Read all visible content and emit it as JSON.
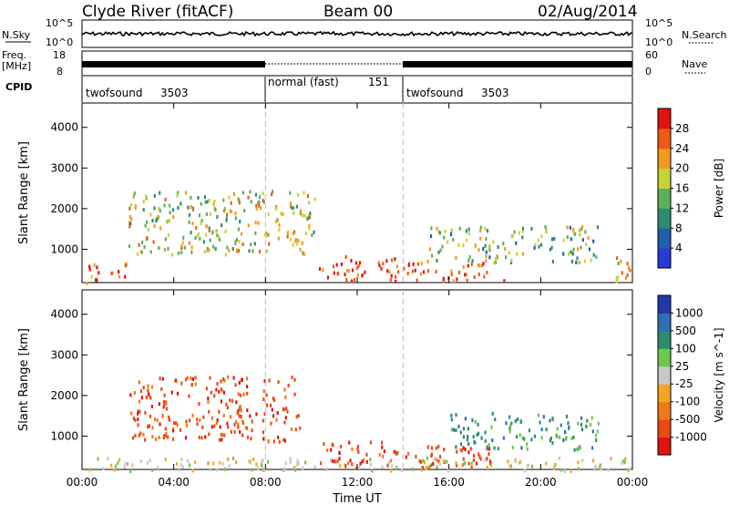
{
  "header": {
    "station": "Clyde River (fitACF)",
    "beam": "Beam 00",
    "date": "02/Aug/2014"
  },
  "strip": {
    "nsky_label": "N.Sky",
    "nsearch_label": "N.Search",
    "nsky_ticks": [
      "10^5",
      "10^0"
    ],
    "nsearch_ticks": [
      "10^5",
      "10^0"
    ],
    "freq_label": "Freq.",
    "freq_unit": "[MHz]",
    "freq_ticks": [
      "18",
      "8"
    ],
    "nave_label": "Nave",
    "nave_ticks": [
      "60",
      "0"
    ],
    "cpid_label": "CPID",
    "cpid_segments": [
      {
        "name": "twofsound",
        "id": "3503",
        "start_hour": 0,
        "end_hour": 8
      },
      {
        "name": "normal (fast)",
        "id": "151",
        "start_hour": 8,
        "end_hour": 14
      },
      {
        "name": "twofsound",
        "id": "3503",
        "start_hour": 14,
        "end_hour": 24
      }
    ]
  },
  "chart_data": [
    {
      "type": "heatmap",
      "title": "",
      "xlabel": "Time UT",
      "ylabel": "Slant Range [km]",
      "x_ticks": [
        "00:00",
        "04:00",
        "08:00",
        "12:00",
        "16:00",
        "20:00",
        "00:00"
      ],
      "x_range_hours": [
        0,
        24
      ],
      "y_ticks": [
        1000,
        2000,
        3000,
        4000
      ],
      "ylim": [
        180,
        4600
      ],
      "colorbar_label": "Power [dB]",
      "colorbar_ticks": [
        4,
        8,
        12,
        16,
        20,
        24,
        28
      ],
      "colorbar_range": [
        0,
        32
      ],
      "colors": [
        "#2a3ad6",
        "#1f5fb0",
        "#2e8c6e",
        "#5fae5a",
        "#c8d13a",
        "#f29a1e",
        "#ee5a14",
        "#e0140f"
      ],
      "dashed_lines_hours": [
        8,
        14
      ],
      "echo_regions": [
        {
          "t0": 0.1,
          "t1": 2.0,
          "r0": 200,
          "r1": 700,
          "level": 0.85
        },
        {
          "t0": 2.0,
          "t1": 10.2,
          "r0": 900,
          "r1": 2500,
          "level": 0.55
        },
        {
          "t0": 10.3,
          "t1": 13.8,
          "r0": 250,
          "r1": 900,
          "level": 0.9
        },
        {
          "t0": 14.0,
          "t1": 18.5,
          "r0": 250,
          "r1": 700,
          "level": 0.85
        },
        {
          "t0": 15.0,
          "t1": 22.5,
          "r0": 700,
          "r1": 1600,
          "level": 0.45
        },
        {
          "t0": 23.0,
          "t1": 24.0,
          "r0": 250,
          "r1": 900,
          "level": 0.7
        }
      ]
    },
    {
      "type": "heatmap",
      "title": "",
      "xlabel": "Time UT",
      "ylabel": "Slant Range [km]",
      "x_ticks": [
        "00:00",
        "04:00",
        "08:00",
        "12:00",
        "16:00",
        "20:00",
        "00:00"
      ],
      "x_range_hours": [
        0,
        24
      ],
      "y_ticks": [
        1000,
        2000,
        3000,
        4000
      ],
      "ylim": [
        180,
        4600
      ],
      "colorbar_label": "Velocity [m s^-1]",
      "colorbar_ticks": [
        1000,
        500,
        100,
        25,
        -25,
        -100,
        -500,
        -1000
      ],
      "colors": [
        "#1f3aa8",
        "#2e6fb8",
        "#2e8c6e",
        "#6cc94a",
        "#c8c8c8",
        "#f4a623",
        "#f07818",
        "#ea4a12",
        "#e0140f"
      ],
      "dashed_lines_hours": [
        8,
        14
      ],
      "echo_regions": [
        {
          "t0": 2.0,
          "t1": 9.5,
          "r0": 900,
          "r1": 2500,
          "velocity": -500
        },
        {
          "t0": 10.3,
          "t1": 13.8,
          "r0": 250,
          "r1": 900,
          "velocity": -500
        },
        {
          "t0": 14.0,
          "t1": 18.5,
          "r0": 250,
          "r1": 800,
          "velocity": -500
        },
        {
          "t0": 16.0,
          "t1": 22.5,
          "r0": 700,
          "r1": 1600,
          "velocity": 100
        },
        {
          "t0": 0.0,
          "t1": 24.0,
          "r0": 180,
          "r1": 500,
          "velocity": 0
        }
      ]
    }
  ]
}
